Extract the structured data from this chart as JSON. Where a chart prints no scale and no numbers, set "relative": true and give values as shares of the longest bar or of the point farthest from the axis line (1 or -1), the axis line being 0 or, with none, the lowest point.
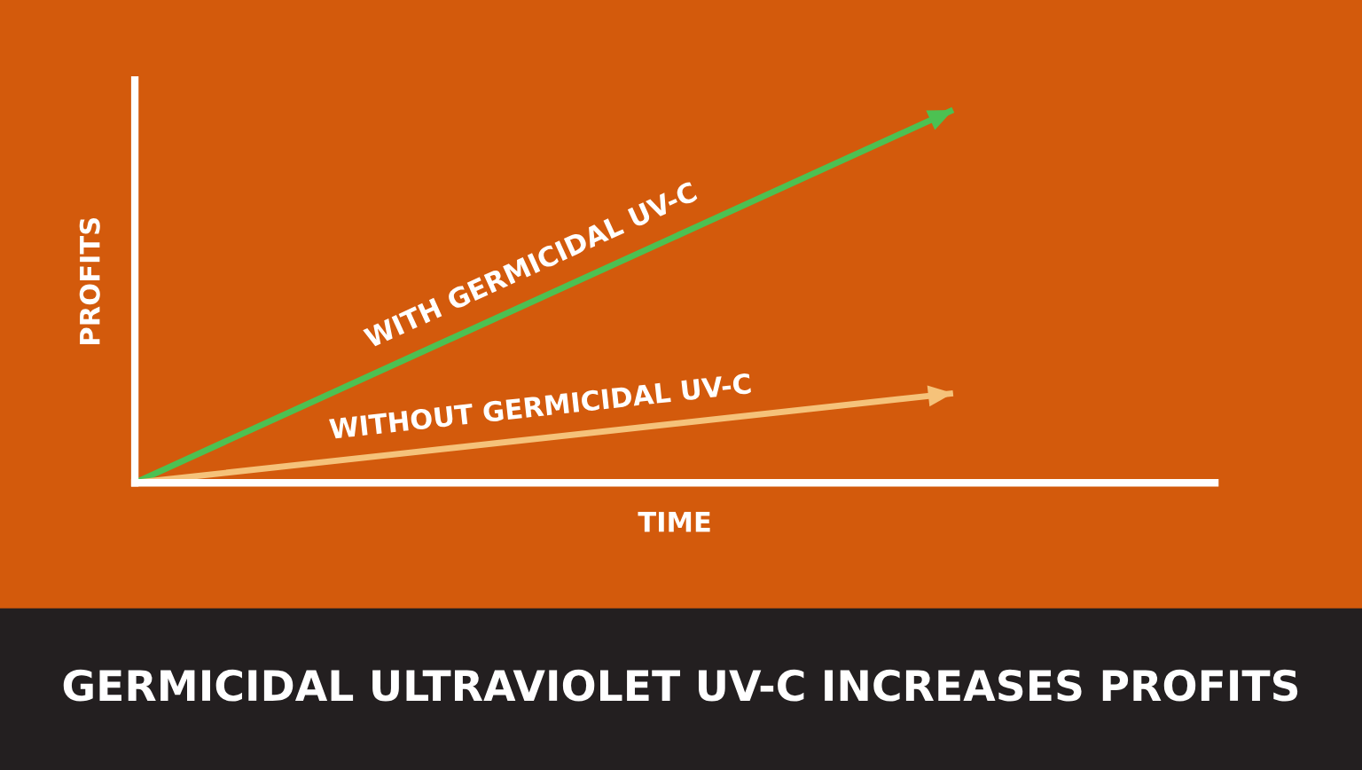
{
  "chart_data": {
    "type": "line",
    "title": "GERMICIDAL ULTRAVIOLET UV-C INCREASES PROFITS",
    "xlabel": "TIME",
    "ylabel": "PROFITS",
    "relative": true,
    "categories": [
      null,
      null
    ],
    "series": [
      {
        "name": "WITH GERMICIDAL UV-C",
        "color": "#4cc152",
        "values": [
          0,
          1
        ]
      },
      {
        "name": "WITHOUT GERMICIDAL UV-C",
        "color": "#f5c27a",
        "values": [
          0,
          0.24
        ]
      }
    ],
    "line_style": "solid",
    "grid": false,
    "legend": false
  }
}
